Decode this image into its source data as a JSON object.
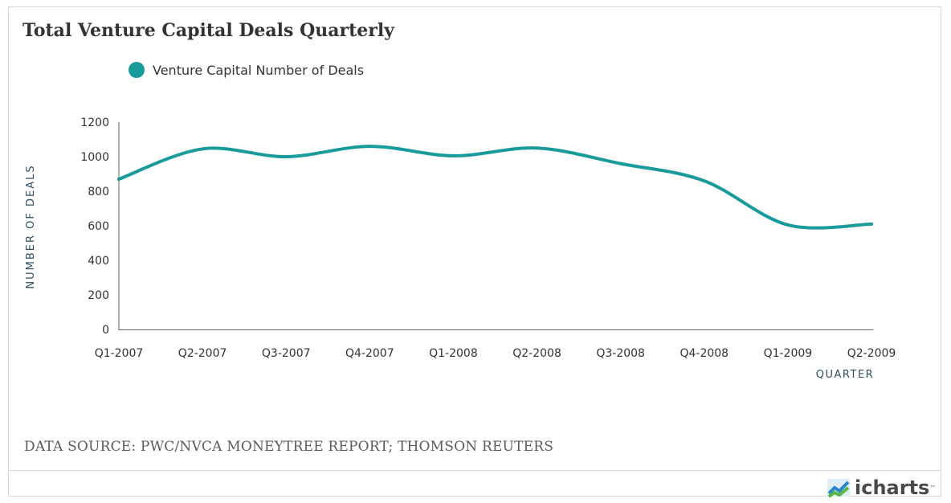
{
  "colors": {
    "series": "#1a9b9b",
    "axis": "#666666",
    "text": "#333333"
  },
  "legend": {
    "label": "Venture Capital Number of Deals"
  },
  "source_text": "DATA SOURCE:  PWC/NVCA MONEYTREE REPORT; THOMSON REUTERS",
  "brand": {
    "name": "icharts",
    "icon": "chart-logo-icon"
  },
  "chart_data": {
    "type": "line",
    "title": "Total Venture Capital Deals Quarterly",
    "xlabel": "QUARTER",
    "ylabel": "NUMBER OF DEALS",
    "categories": [
      "Q1-2007",
      "Q2-2007",
      "Q3-2007",
      "Q4-2007",
      "Q1-2008",
      "Q2-2008",
      "Q3-2008",
      "Q4-2008",
      "Q1-2009",
      "Q2-2009"
    ],
    "series": [
      {
        "name": "Venture Capital Number of Deals",
        "values": [
          870,
          1045,
          1000,
          1060,
          1005,
          1050,
          960,
          860,
          605,
          610
        ]
      }
    ],
    "ylim": [
      0,
      1200
    ],
    "yticks": [
      0,
      200,
      400,
      600,
      800,
      1000,
      1200
    ],
    "grid": false,
    "legend_position": "top-left"
  }
}
